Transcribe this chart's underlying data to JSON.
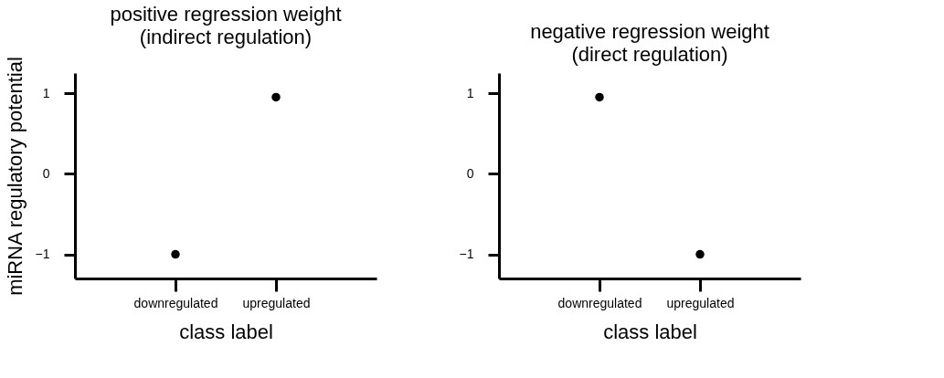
{
  "chart_data": [
    {
      "type": "scatter",
      "title": "positive regression weight",
      "subtitle": "(indirect regulation)",
      "xlabel": "class label",
      "ylabel": "miRNA regulatory potential",
      "categories": [
        "downregulated",
        "upregulated"
      ],
      "values": [
        -1,
        0.95
      ],
      "color": "#000000",
      "marker": "circle",
      "ylim": [
        -1.3,
        1.25
      ],
      "yticks": [
        -1,
        0,
        1
      ]
    },
    {
      "type": "scatter",
      "title": "negative regression weight",
      "subtitle": "(direct regulation)",
      "xlabel": "class label",
      "categories": [
        "downregulated",
        "upregulated"
      ],
      "values": [
        0.95,
        -1
      ],
      "color": "#000000",
      "marker": "circle",
      "ylim": [
        -1.3,
        1.25
      ],
      "yticks": [
        -1,
        0,
        1
      ]
    }
  ]
}
